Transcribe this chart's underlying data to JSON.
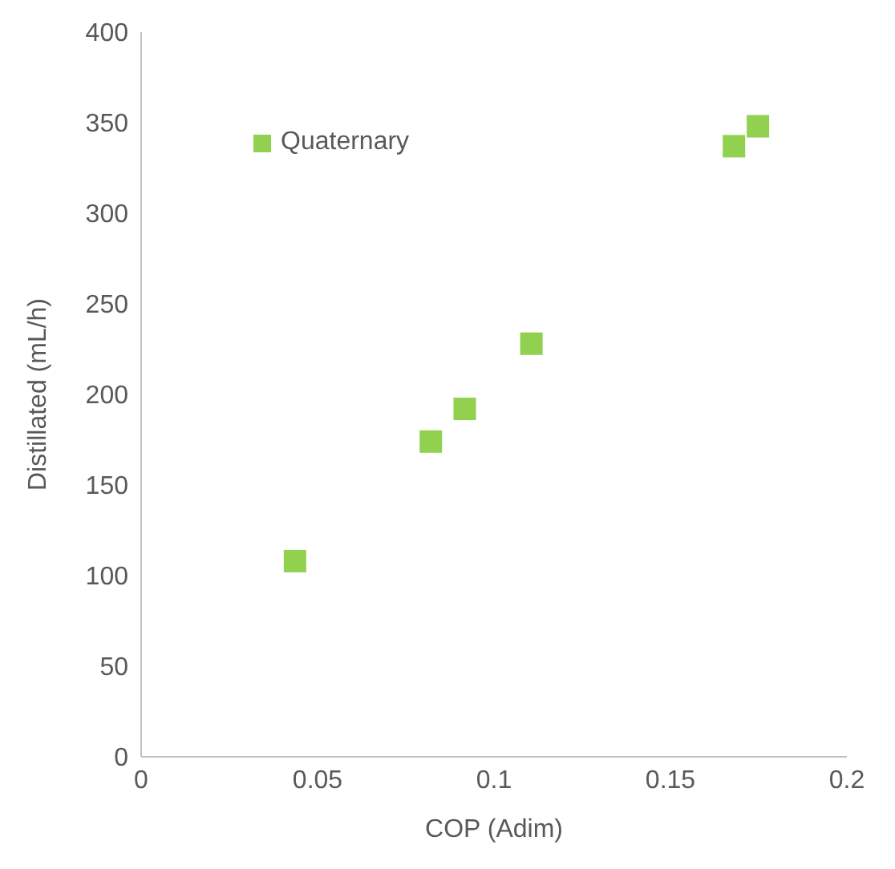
{
  "chart_data": {
    "type": "scatter",
    "xlabel": "COP (Adim)",
    "ylabel": "Distillated  (mL/h)",
    "x": [
      0.0436,
      0.0821,
      0.0917,
      0.1106,
      0.168,
      0.1748
    ],
    "series": [
      {
        "name": "Quaternary",
        "color": "#92d050",
        "values": [
          108,
          174,
          192,
          228,
          337,
          348
        ]
      }
    ],
    "xlim": [
      0,
      0.2
    ],
    "xticks": [
      0,
      0.05,
      0.1,
      0.15,
      0.2
    ],
    "ylim": [
      0,
      400
    ],
    "yticks": [
      0,
      50,
      100,
      150,
      200,
      250,
      300,
      350,
      400
    ],
    "grid": false,
    "legend": "top left",
    "marker": "square"
  }
}
